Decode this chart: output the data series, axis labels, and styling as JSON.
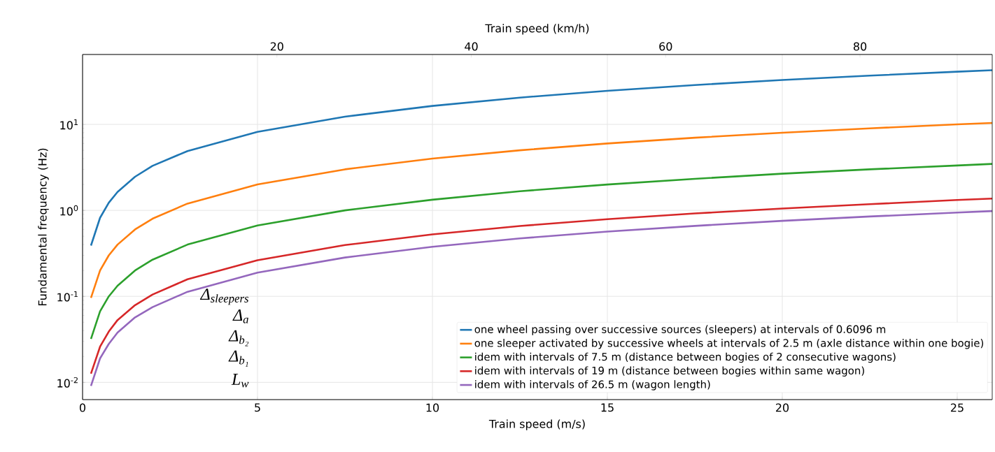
{
  "chart_data": {
    "type": "line",
    "xlabel": "Train speed (m/s)",
    "ylabel": "Fundamental frequency (Hz)",
    "x2label": "Train speed (km/h)",
    "x": [
      0.24,
      0.5,
      0.75,
      1,
      1.5,
      2,
      3,
      5,
      7.5,
      10,
      12.5,
      15,
      17.5,
      20,
      22.5,
      25,
      26
    ],
    "series": [
      {
        "name": "one wheel passing over successive sources (sleepers) at intervals of 0.6096 m",
        "color": "#1f77b4",
        "values": [
          0.39,
          0.82,
          1.23,
          1.64,
          2.46,
          3.3,
          4.9,
          8.2,
          12.3,
          16.4,
          20.5,
          24.6,
          28.7,
          32.8,
          36.9,
          41,
          42.7
        ]
      },
      {
        "name": "one sleeper activated by successive wheels at intervals of 2.5 m (axle distance within one bogie)",
        "color": "#ff7f0e",
        "values": [
          0.096,
          0.2,
          0.3,
          0.4,
          0.6,
          0.8,
          1.2,
          2,
          3,
          4,
          5,
          6,
          7,
          8,
          9,
          10,
          10.4
        ]
      },
      {
        "name": "idem with intervals of 7.5 m (distance between bogies of 2 consecutive wagons)",
        "color": "#2ca02c",
        "values": [
          0.032,
          0.067,
          0.1,
          0.133,
          0.2,
          0.267,
          0.4,
          0.667,
          1,
          1.33,
          1.67,
          2,
          2.33,
          2.67,
          3,
          3.33,
          3.47
        ]
      },
      {
        "name": "idem with intervals of 19 m (distance between bogies within same wagon)",
        "color": "#d62728",
        "values": [
          0.0126,
          0.026,
          0.039,
          0.053,
          0.079,
          0.105,
          0.158,
          0.263,
          0.395,
          0.526,
          0.658,
          0.789,
          0.921,
          1.05,
          1.18,
          1.32,
          1.37
        ]
      },
      {
        "name": "idem with intervals of 26.5 m (wagon length)",
        "color": "#9467bd",
        "values": [
          0.0091,
          0.019,
          0.028,
          0.038,
          0.057,
          0.075,
          0.113,
          0.189,
          0.283,
          0.377,
          0.472,
          0.566,
          0.66,
          0.755,
          0.849,
          0.943,
          0.981
        ]
      }
    ],
    "annotations": [
      "Δ$_{sleepers}$",
      "Δ$_{a}$",
      "Δ$_{b₂}$",
      "Δ$_{b₁}$",
      "L$_{w}$"
    ],
    "xlim": [
      0,
      26
    ],
    "xticks": [
      0,
      5,
      10,
      15,
      20,
      25
    ],
    "x2lim": [
      0,
      93.6
    ],
    "x2ticks": [
      20,
      40,
      60,
      80
    ],
    "ylim": [
      0.0063,
      65
    ],
    "yticks": [
      {
        "value": 0.01,
        "label": "10$^{-2}$"
      },
      {
        "value": 0.1,
        "label": "10$^{-1}$"
      },
      {
        "value": 1,
        "label": "10$^{0}$"
      },
      {
        "value": 10,
        "label": "10$^{1}$"
      }
    ],
    "log": "y",
    "grid": true,
    "legend": "bottom right",
    "line_style": "solid",
    "marker": "none"
  }
}
